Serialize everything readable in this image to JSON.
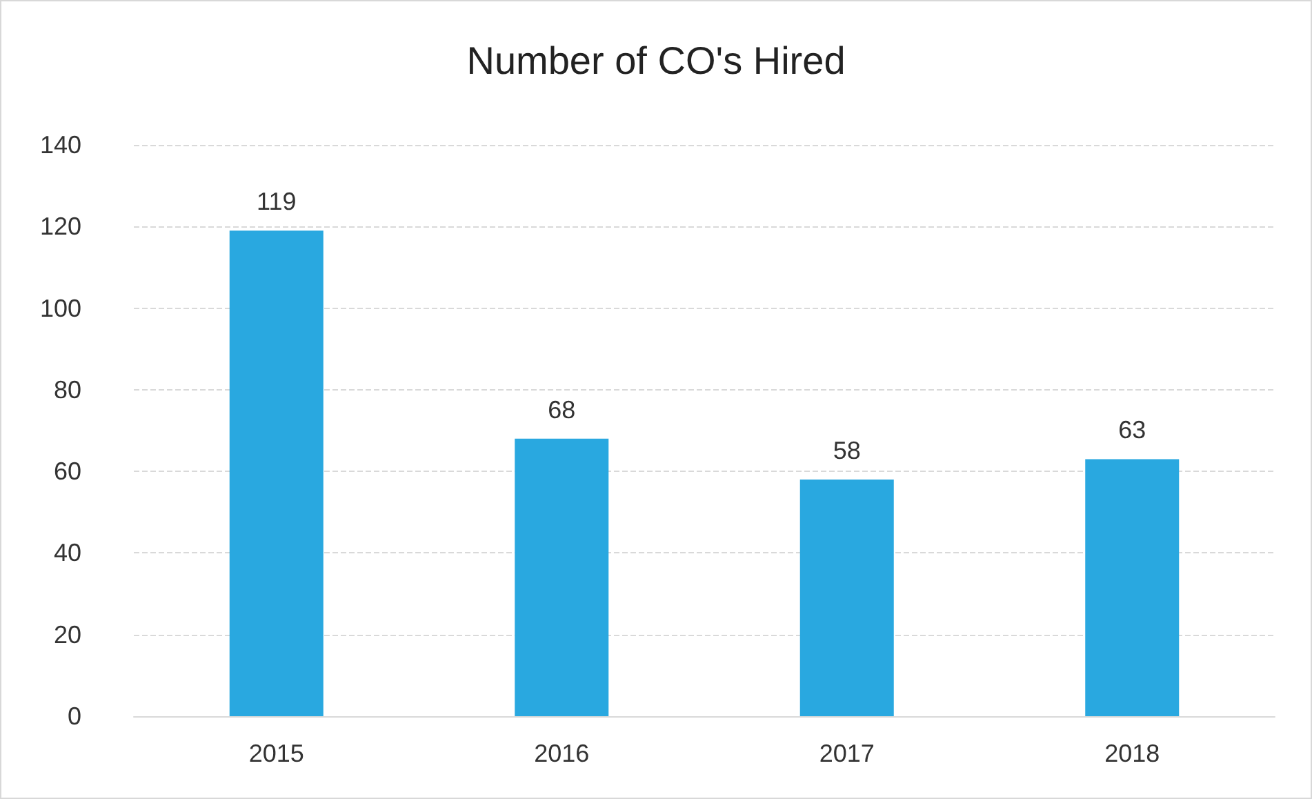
{
  "chart_data": {
    "type": "bar",
    "title": "Number of CO's Hired",
    "categories": [
      "2015",
      "2016",
      "2017",
      "2018"
    ],
    "values": [
      119,
      68,
      58,
      63
    ],
    "color": "#29a8e0",
    "ylim": [
      0,
      140
    ],
    "yticks": [
      0,
      20,
      40,
      60,
      80,
      100,
      120,
      140
    ],
    "grid": "y",
    "data_labels": true
  }
}
